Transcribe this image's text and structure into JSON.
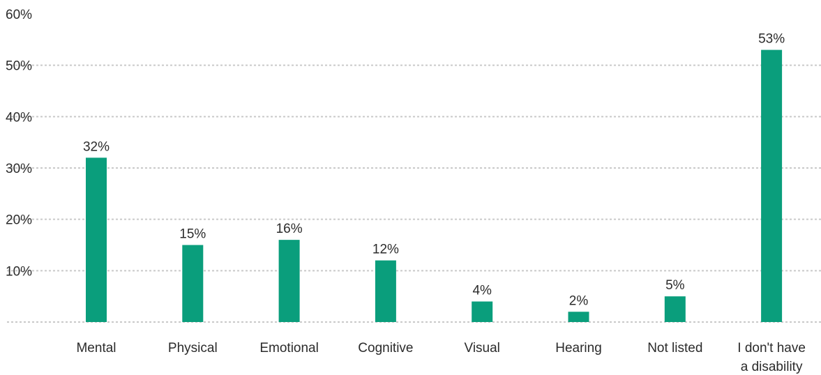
{
  "chart_data": {
    "type": "bar",
    "title": "",
    "xlabel": "",
    "ylabel": "",
    "categories": [
      "Mental",
      "Physical",
      "Emotional",
      "Cognitive",
      "Visual",
      "Hearing",
      "Not listed",
      "I don't have a disability"
    ],
    "category_lines": [
      [
        "Mental"
      ],
      [
        "Physical"
      ],
      [
        "Emotional"
      ],
      [
        "Cognitive"
      ],
      [
        "Visual"
      ],
      [
        "Hearing"
      ],
      [
        "Not listed"
      ],
      [
        "I don't have",
        "a disability"
      ]
    ],
    "values": [
      32,
      15,
      16,
      12,
      4,
      2,
      5,
      53
    ],
    "data_labels": [
      "32%",
      "15%",
      "16%",
      "12%",
      "4%",
      "2%",
      "5%",
      "53%"
    ],
    "ylim": [
      0,
      60
    ],
    "yticks": [
      10,
      20,
      30,
      40,
      50,
      60
    ],
    "ytick_labels": [
      "10%",
      "20%",
      "30%",
      "40%",
      "50%",
      "60%"
    ],
    "grid": true,
    "legend": "none",
    "bar_color": "#0a9e7c"
  }
}
